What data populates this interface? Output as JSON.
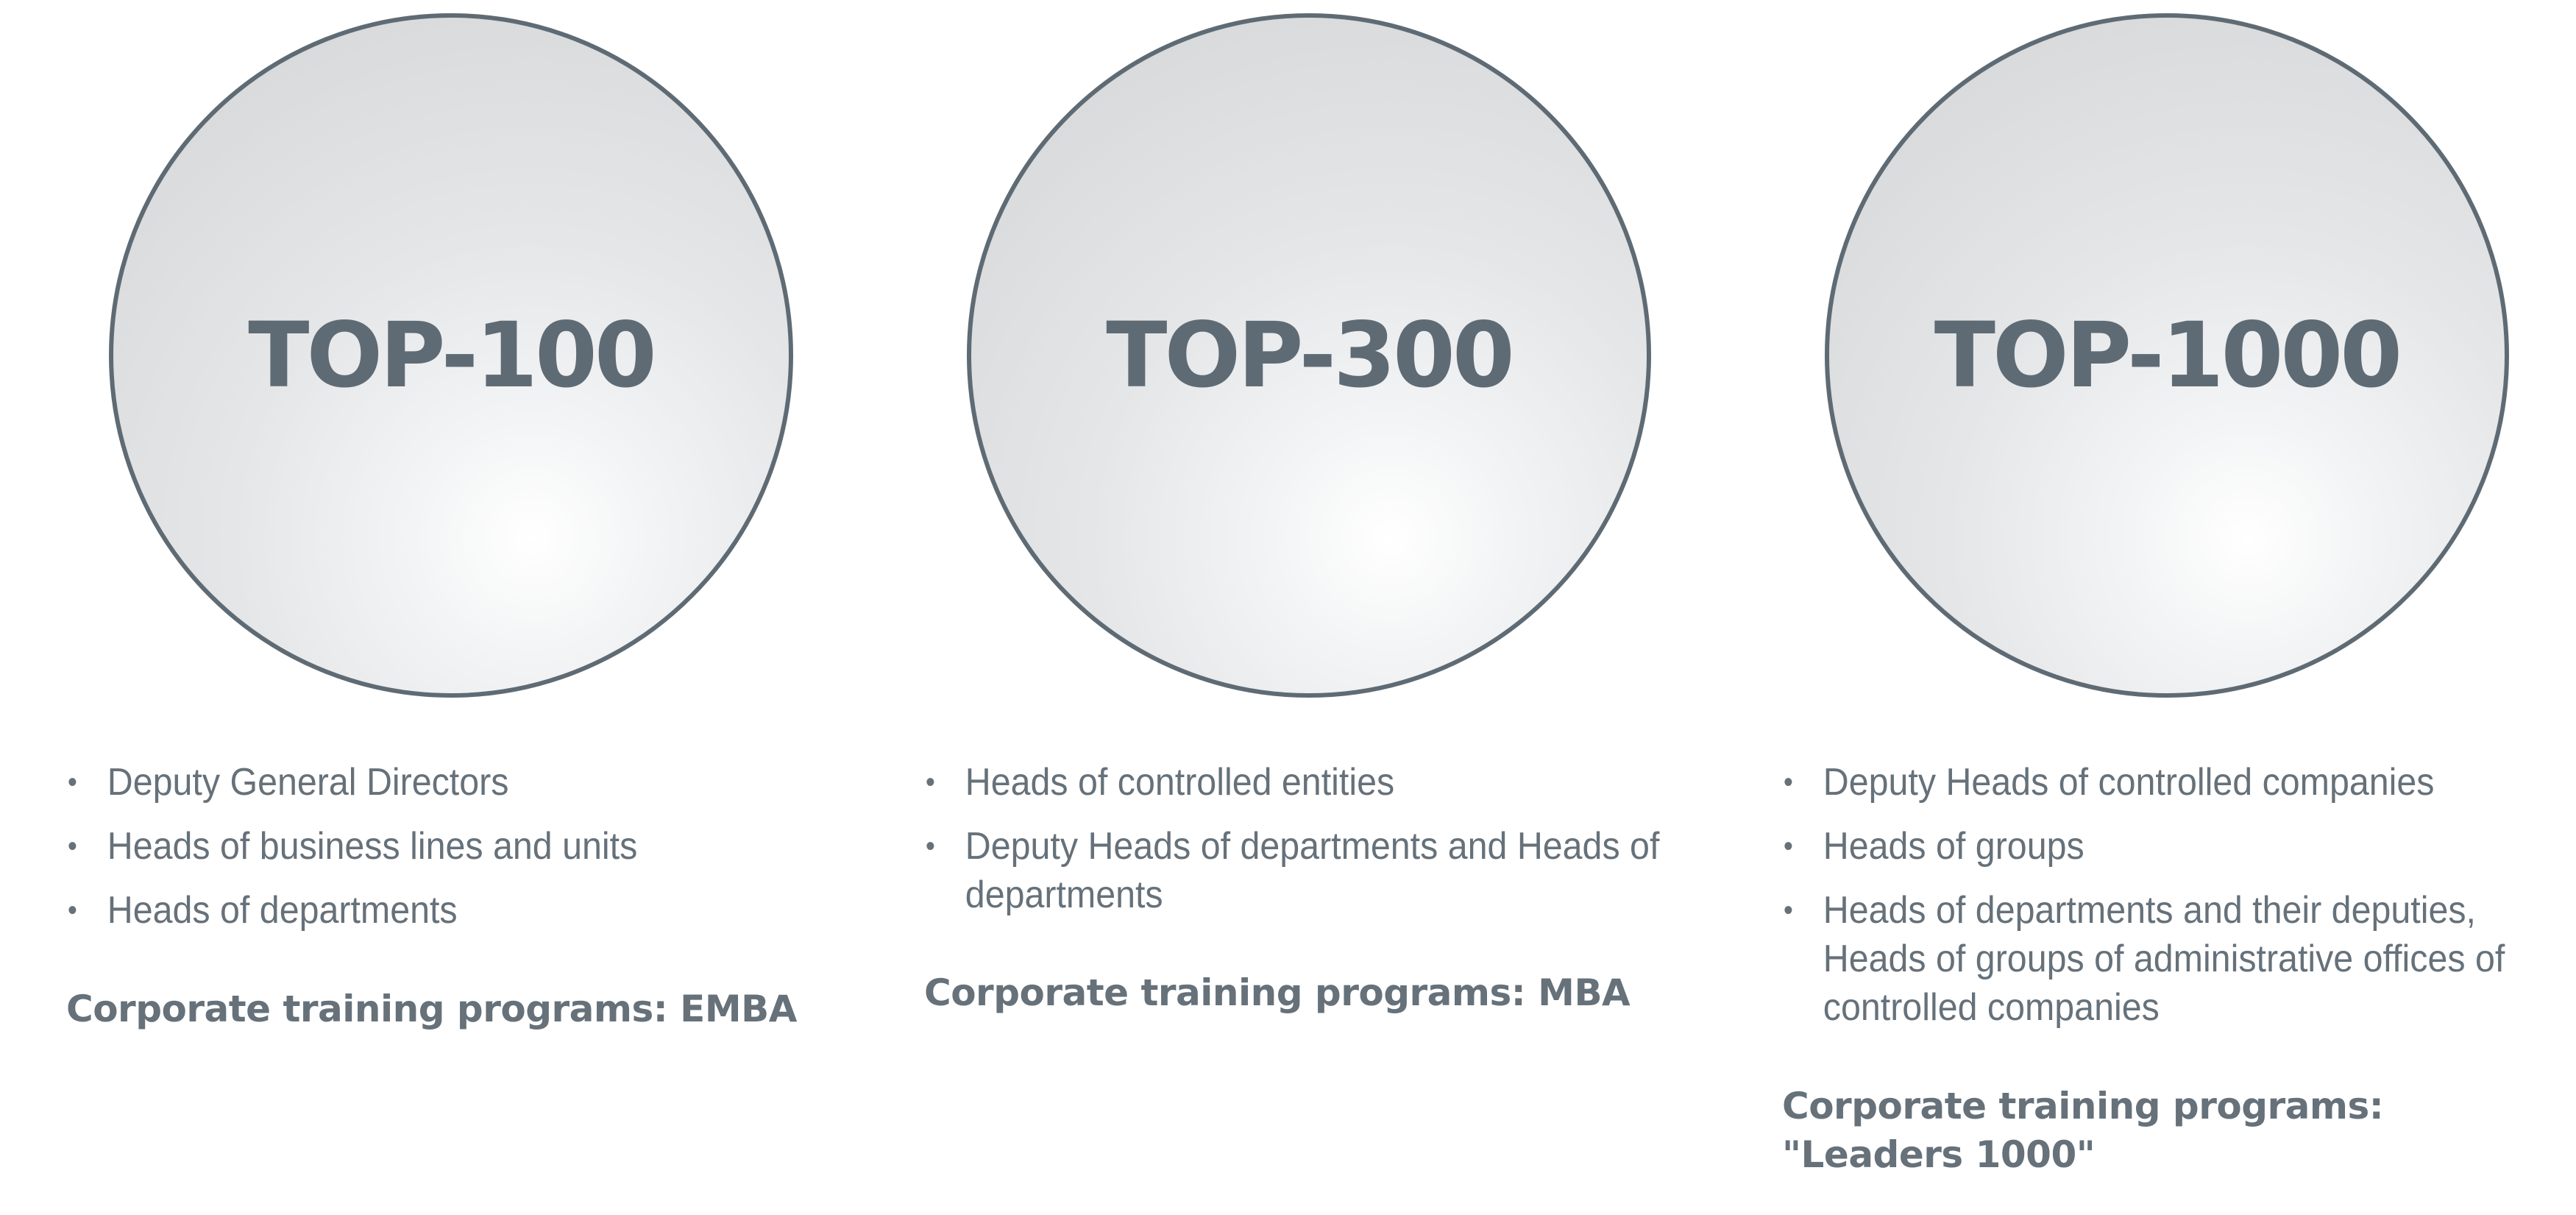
{
  "columns": [
    {
      "label": "TOP-100",
      "bullets": [
        "Deputy General Directors",
        "Heads of business lines and units",
        "Heads of departments"
      ],
      "program": "Corporate training programs: EMBA"
    },
    {
      "label": "TOP-300",
      "bullets": [
        "Heads of controlled entities",
        "Deputy Heads of departments and Heads of departments"
      ],
      "program": "Corporate training programs: MBA"
    },
    {
      "label": "TOP-1000",
      "bullets": [
        "Deputy Heads of controlled companies",
        "Heads of groups",
        "Heads of departments and their deputies, Heads of groups of administrative offices of controlled companies"
      ],
      "program": "Corporate training programs: \"Leaders 1000\""
    }
  ],
  "colors": {
    "text": "#5f6b74",
    "circle_border": "#5f6b74",
    "circle_fill_light": "#ffffff",
    "circle_fill_dark": "#d2d4d6"
  }
}
